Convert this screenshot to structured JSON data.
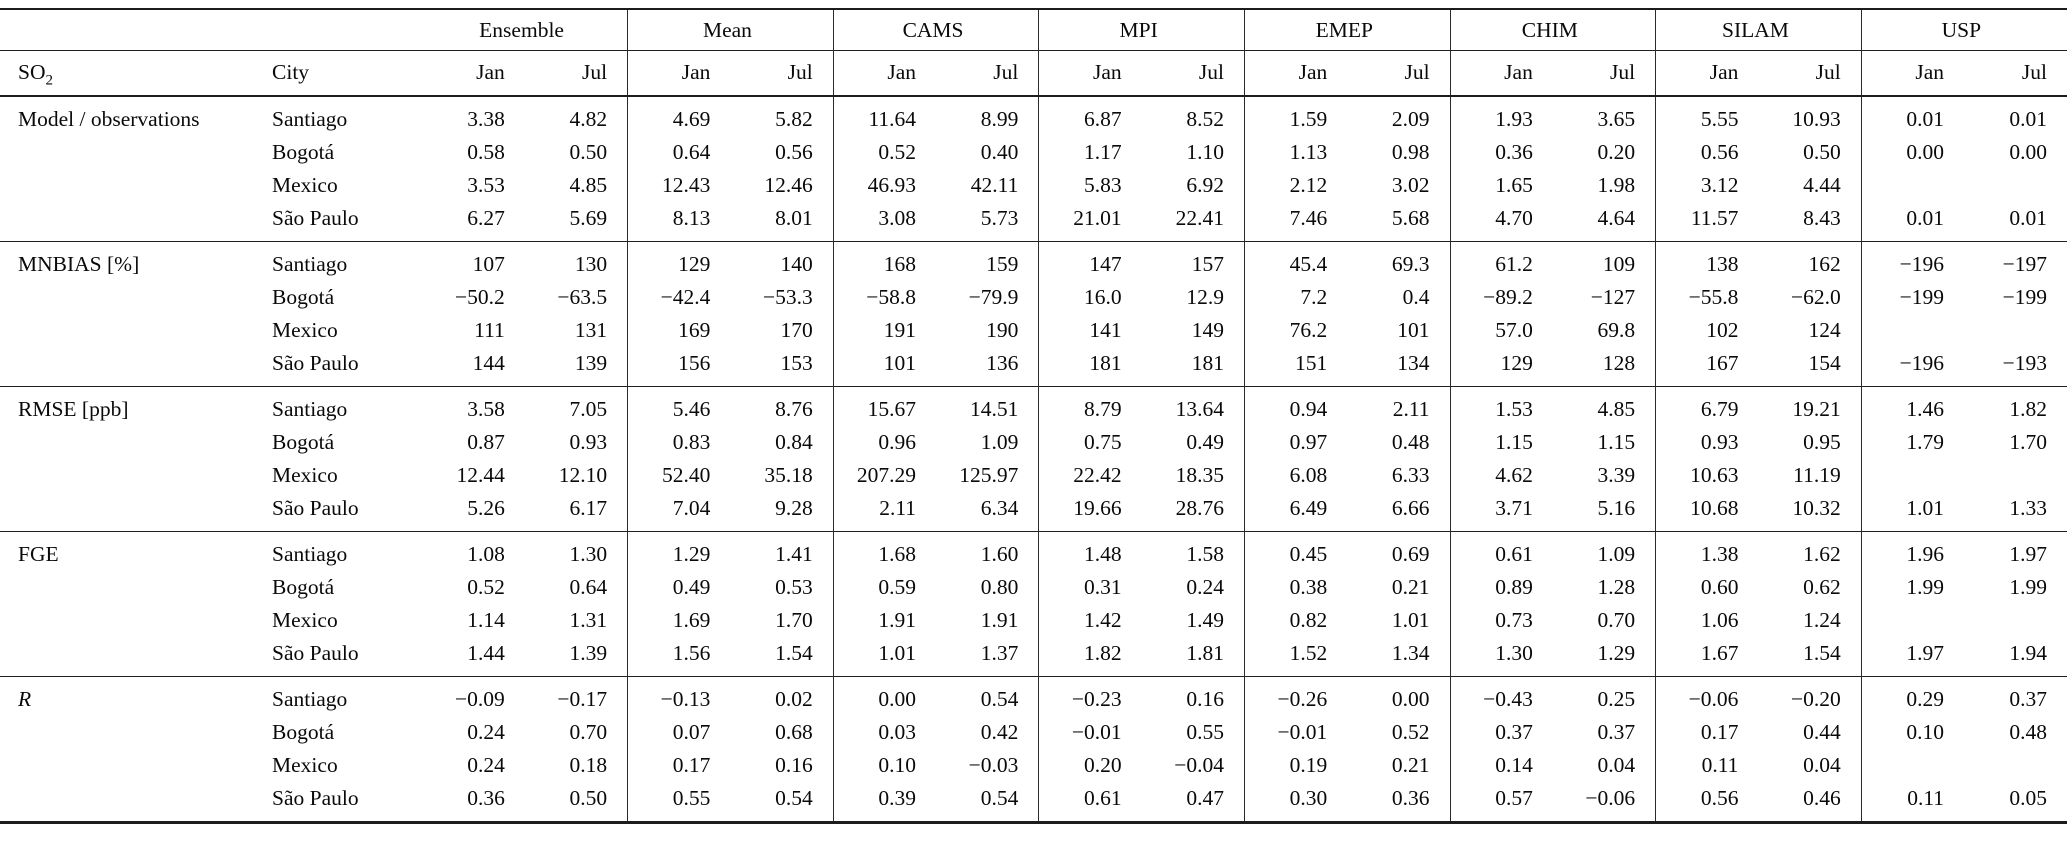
{
  "table": {
    "header": {
      "metric_base": "SO",
      "metric_sub": "2",
      "city": "City",
      "jan": "Jan",
      "jul": "Jul"
    },
    "groups": [
      "Ensemble",
      "Mean",
      "CAMS",
      "MPI",
      "EMEP",
      "CHIM",
      "SILAM",
      "USP"
    ],
    "sections": [
      {
        "label": "Model / observations",
        "italic": false,
        "rows": [
          {
            "city": "Santiago",
            "values": [
              "3.38",
              "4.82",
              "4.69",
              "5.82",
              "11.64",
              "8.99",
              "6.87",
              "8.52",
              "1.59",
              "2.09",
              "1.93",
              "3.65",
              "5.55",
              "10.93",
              "0.01",
              "0.01"
            ]
          },
          {
            "city": "Bogotá",
            "values": [
              "0.58",
              "0.50",
              "0.64",
              "0.56",
              "0.52",
              "0.40",
              "1.17",
              "1.10",
              "1.13",
              "0.98",
              "0.36",
              "0.20",
              "0.56",
              "0.50",
              "0.00",
              "0.00"
            ]
          },
          {
            "city": "Mexico",
            "values": [
              "3.53",
              "4.85",
              "12.43",
              "12.46",
              "46.93",
              "42.11",
              "5.83",
              "6.92",
              "2.12",
              "3.02",
              "1.65",
              "1.98",
              "3.12",
              "4.44",
              "",
              ""
            ]
          },
          {
            "city": "São Paulo",
            "values": [
              "6.27",
              "5.69",
              "8.13",
              "8.01",
              "3.08",
              "5.73",
              "21.01",
              "22.41",
              "7.46",
              "5.68",
              "4.70",
              "4.64",
              "11.57",
              "8.43",
              "0.01",
              "0.01"
            ]
          }
        ]
      },
      {
        "label": "MNBIAS [%]",
        "italic": false,
        "rows": [
          {
            "city": "Santiago",
            "values": [
              "107",
              "130",
              "129",
              "140",
              "168",
              "159",
              "147",
              "157",
              "45.4",
              "69.3",
              "61.2",
              "109",
              "138",
              "162",
              "−196",
              "−197"
            ]
          },
          {
            "city": "Bogotá",
            "values": [
              "−50.2",
              "−63.5",
              "−42.4",
              "−53.3",
              "−58.8",
              "−79.9",
              "16.0",
              "12.9",
              "7.2",
              "0.4",
              "−89.2",
              "−127",
              "−55.8",
              "−62.0",
              "−199",
              "−199"
            ]
          },
          {
            "city": "Mexico",
            "values": [
              "111",
              "131",
              "169",
              "170",
              "191",
              "190",
              "141",
              "149",
              "76.2",
              "101",
              "57.0",
              "69.8",
              "102",
              "124",
              "",
              ""
            ]
          },
          {
            "city": "São Paulo",
            "values": [
              "144",
              "139",
              "156",
              "153",
              "101",
              "136",
              "181",
              "181",
              "151",
              "134",
              "129",
              "128",
              "167",
              "154",
              "−196",
              "−193"
            ]
          }
        ]
      },
      {
        "label": "RMSE [ppb]",
        "italic": false,
        "rows": [
          {
            "city": "Santiago",
            "values": [
              "3.58",
              "7.05",
              "5.46",
              "8.76",
              "15.67",
              "14.51",
              "8.79",
              "13.64",
              "0.94",
              "2.11",
              "1.53",
              "4.85",
              "6.79",
              "19.21",
              "1.46",
              "1.82"
            ]
          },
          {
            "city": "Bogotá",
            "values": [
              "0.87",
              "0.93",
              "0.83",
              "0.84",
              "0.96",
              "1.09",
              "0.75",
              "0.49",
              "0.97",
              "0.48",
              "1.15",
              "1.15",
              "0.93",
              "0.95",
              "1.79",
              "1.70"
            ]
          },
          {
            "city": "Mexico",
            "values": [
              "12.44",
              "12.10",
              "52.40",
              "35.18",
              "207.29",
              "125.97",
              "22.42",
              "18.35",
              "6.08",
              "6.33",
              "4.62",
              "3.39",
              "10.63",
              "11.19",
              "",
              ""
            ]
          },
          {
            "city": "São Paulo",
            "values": [
              "5.26",
              "6.17",
              "7.04",
              "9.28",
              "2.11",
              "6.34",
              "19.66",
              "28.76",
              "6.49",
              "6.66",
              "3.71",
              "5.16",
              "10.68",
              "10.32",
              "1.01",
              "1.33"
            ]
          }
        ]
      },
      {
        "label": "FGE",
        "italic": false,
        "rows": [
          {
            "city": "Santiago",
            "values": [
              "1.08",
              "1.30",
              "1.29",
              "1.41",
              "1.68",
              "1.60",
              "1.48",
              "1.58",
              "0.45",
              "0.69",
              "0.61",
              "1.09",
              "1.38",
              "1.62",
              "1.96",
              "1.97"
            ]
          },
          {
            "city": "Bogotá",
            "values": [
              "0.52",
              "0.64",
              "0.49",
              "0.53",
              "0.59",
              "0.80",
              "0.31",
              "0.24",
              "0.38",
              "0.21",
              "0.89",
              "1.28",
              "0.60",
              "0.62",
              "1.99",
              "1.99"
            ]
          },
          {
            "city": "Mexico",
            "values": [
              "1.14",
              "1.31",
              "1.69",
              "1.70",
              "1.91",
              "1.91",
              "1.42",
              "1.49",
              "0.82",
              "1.01",
              "0.73",
              "0.70",
              "1.06",
              "1.24",
              "",
              ""
            ]
          },
          {
            "city": "São Paulo",
            "values": [
              "1.44",
              "1.39",
              "1.56",
              "1.54",
              "1.01",
              "1.37",
              "1.82",
              "1.81",
              "1.52",
              "1.34",
              "1.30",
              "1.29",
              "1.67",
              "1.54",
              "1.97",
              "1.94"
            ]
          }
        ]
      },
      {
        "label": "R",
        "italic": true,
        "rows": [
          {
            "city": "Santiago",
            "values": [
              "−0.09",
              "−0.17",
              "−0.13",
              "0.02",
              "0.00",
              "0.54",
              "−0.23",
              "0.16",
              "−0.26",
              "0.00",
              "−0.43",
              "0.25",
              "−0.06",
              "−0.20",
              "0.29",
              "0.37"
            ]
          },
          {
            "city": "Bogotá",
            "values": [
              "0.24",
              "0.70",
              "0.07",
              "0.68",
              "0.03",
              "0.42",
              "−0.01",
              "0.55",
              "−0.01",
              "0.52",
              "0.37",
              "0.37",
              "0.17",
              "0.44",
              "0.10",
              "0.48"
            ]
          },
          {
            "city": "Mexico",
            "values": [
              "0.24",
              "0.18",
              "0.17",
              "0.16",
              "0.10",
              "−0.03",
              "0.20",
              "−0.04",
              "0.19",
              "0.21",
              "0.14",
              "0.04",
              "0.11",
              "0.04",
              "",
              ""
            ]
          },
          {
            "city": "São Paulo",
            "values": [
              "0.36",
              "0.50",
              "0.55",
              "0.54",
              "0.39",
              "0.54",
              "0.61",
              "0.47",
              "0.30",
              "0.36",
              "0.57",
              "−0.06",
              "0.56",
              "0.46",
              "0.11",
              "0.05"
            ]
          }
        ]
      }
    ]
  }
}
